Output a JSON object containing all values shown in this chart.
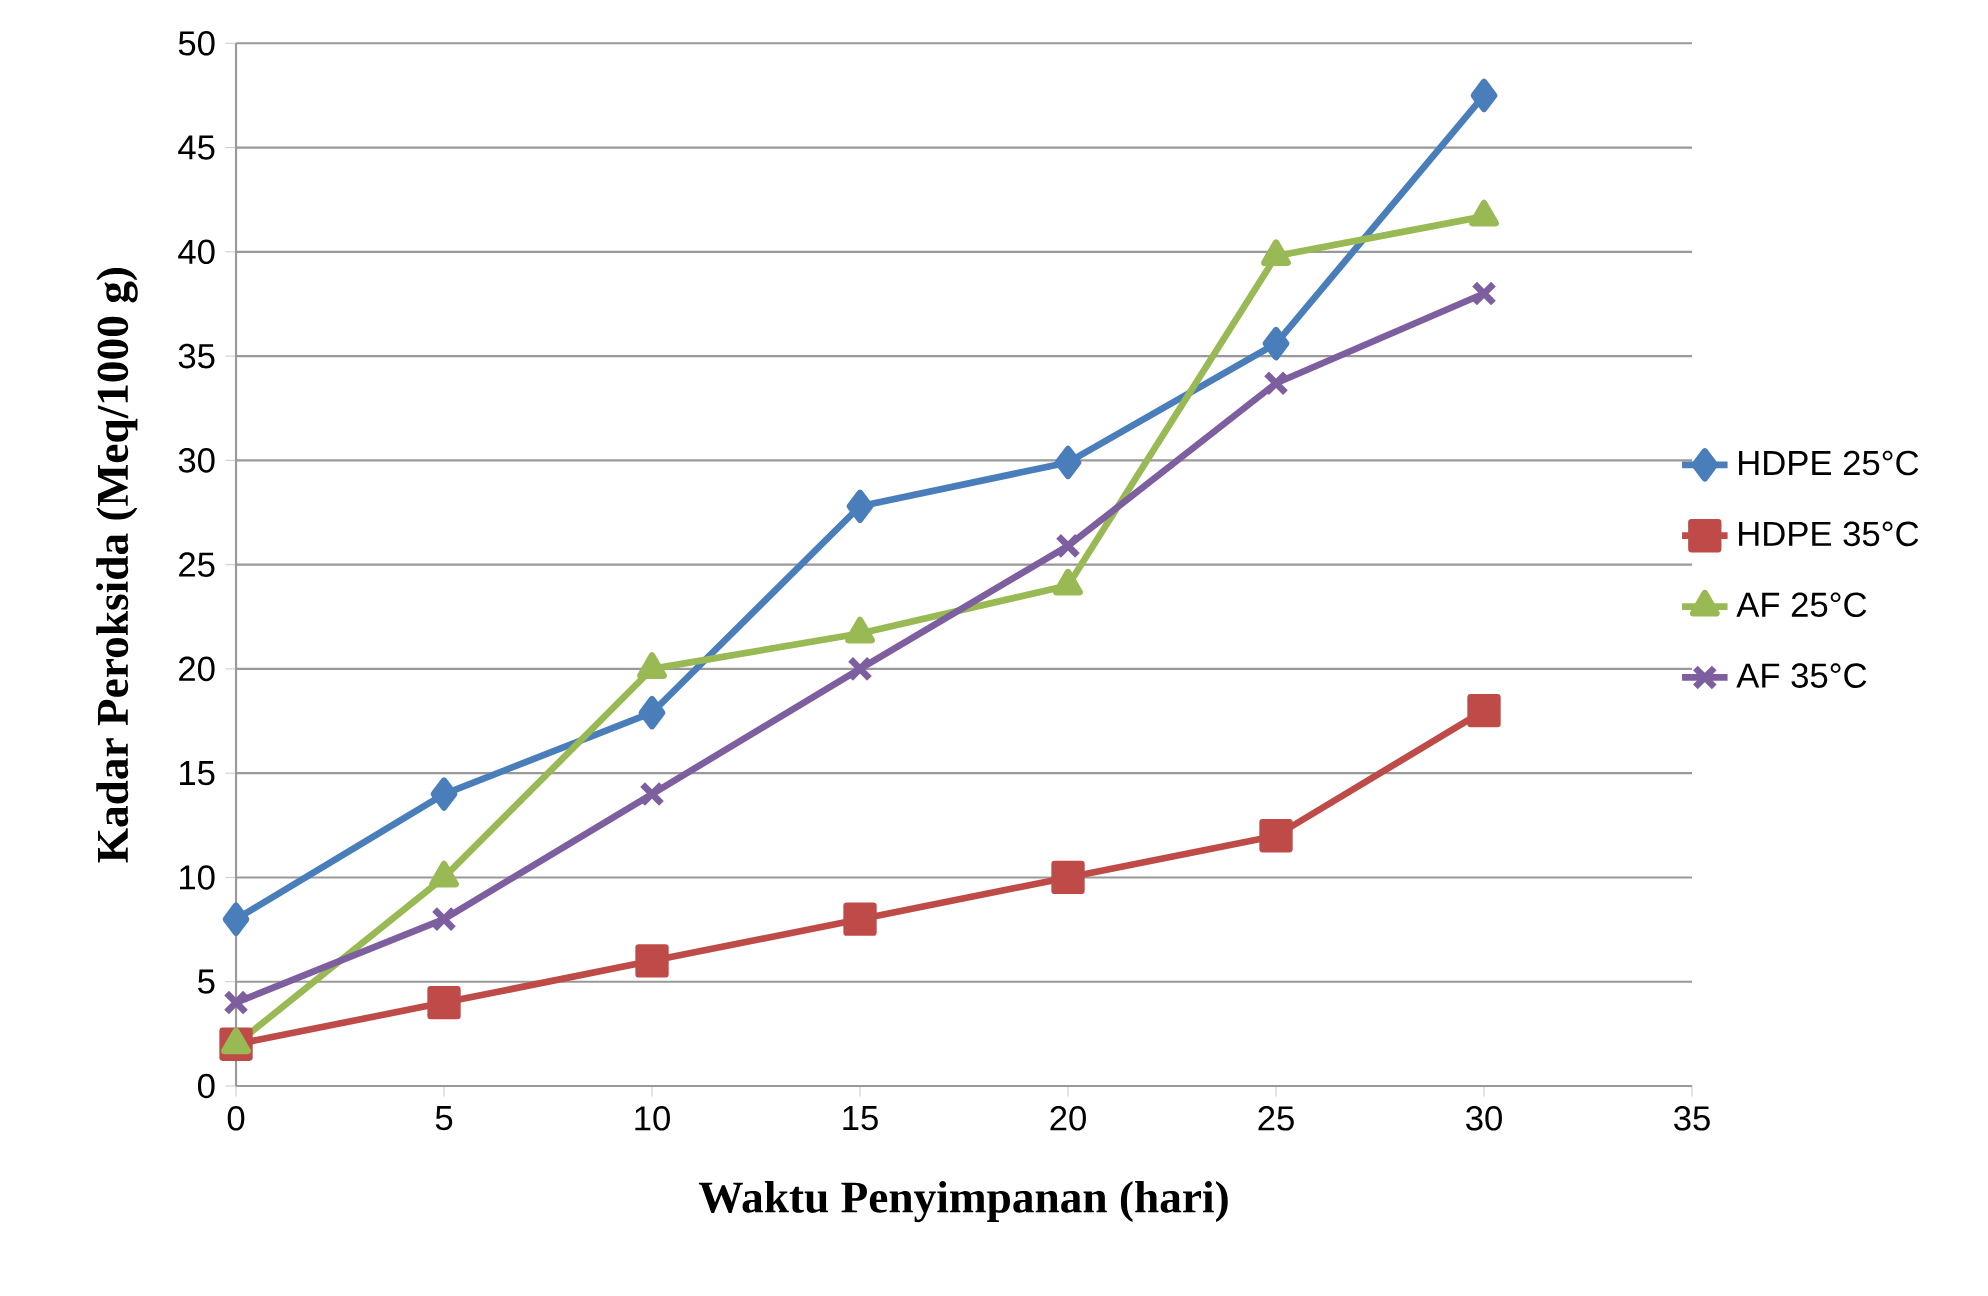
{
  "chart_data": {
    "type": "line",
    "xlabel": "Waktu Penyimpanan (hari)",
    "ylabel": "Kadar Peroksida (Meq/1000 g)",
    "x": [
      0,
      5,
      10,
      15,
      20,
      25,
      30
    ],
    "series": [
      {
        "name": "HDPE 25°C",
        "color": "#4a7ebb",
        "marker": "diamond",
        "values": [
          8,
          14,
          17.9,
          27.8,
          29.9,
          35.6,
          47.5
        ]
      },
      {
        "name": "HDPE 35°C",
        "color": "#be4b48",
        "marker": "square",
        "values": [
          2,
          4,
          6,
          8,
          10,
          12,
          18
        ]
      },
      {
        "name": "AF 25°C",
        "color": "#98b954",
        "marker": "triangle",
        "values": [
          2,
          10,
          20,
          21.7,
          24,
          39.8,
          41.7
        ]
      },
      {
        "name": "AF 35°C",
        "color": "#7d5fa0",
        "marker": "cross",
        "values": [
          4,
          8,
          14,
          20,
          25.9,
          33.7,
          38
        ]
      }
    ],
    "xlim": [
      0,
      35
    ],
    "xticks": [
      0,
      5,
      10,
      15,
      20,
      25,
      30,
      35
    ],
    "ylim": [
      0,
      50
    ],
    "yticks": [
      0,
      5,
      10,
      15,
      20,
      25,
      30,
      35,
      40,
      45,
      50
    ],
    "grid": "y",
    "legend": "right",
    "line_style": "solid"
  }
}
